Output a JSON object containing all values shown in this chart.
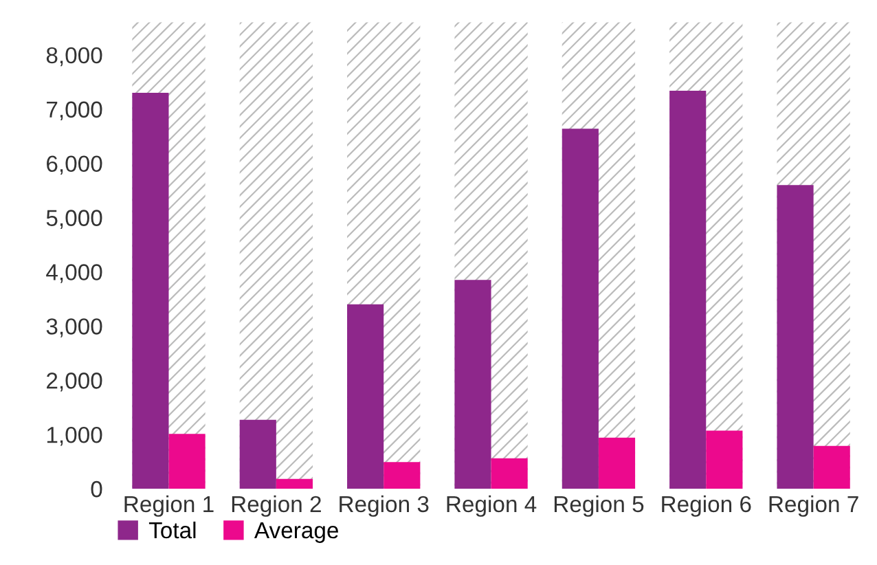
{
  "chart_data": {
    "type": "bar",
    "categories": [
      "Region 1",
      "Region 2",
      "Region 3",
      "Region 4",
      "Region 5",
      "Region 6",
      "Region 7"
    ],
    "series": [
      {
        "color": "#bbbbbb",
        "values": [
          8600,
          8600,
          8600,
          8600,
          8600,
          8600,
          8600
        ]
      },
      {
        "name": "Total",
        "color": "#8e278b",
        "values": [
          7300,
          1270,
          3400,
          3850,
          6640,
          7340,
          5600
        ]
      },
      {
        "name": "Average",
        "color": "#ec098d",
        "values": [
          1010,
          180,
          490,
          560,
          940,
          1070,
          790
        ]
      }
    ],
    "ylim": [
      0,
      8700
    ],
    "yticks": [
      {
        "value": 0,
        "label": "0"
      },
      {
        "value": 1000,
        "label": "1,000"
      },
      {
        "value": 2000,
        "label": "2,000"
      },
      {
        "value": 3000,
        "label": "3,000"
      },
      {
        "value": 4000,
        "label": "4,000"
      },
      {
        "value": 5000,
        "label": "5,000"
      },
      {
        "value": 6000,
        "label": "6,000"
      },
      {
        "value": 7000,
        "label": "7,000"
      },
      {
        "value": 8000,
        "label": "8,000"
      }
    ],
    "grid": false,
    "legend": "bottom left"
  }
}
